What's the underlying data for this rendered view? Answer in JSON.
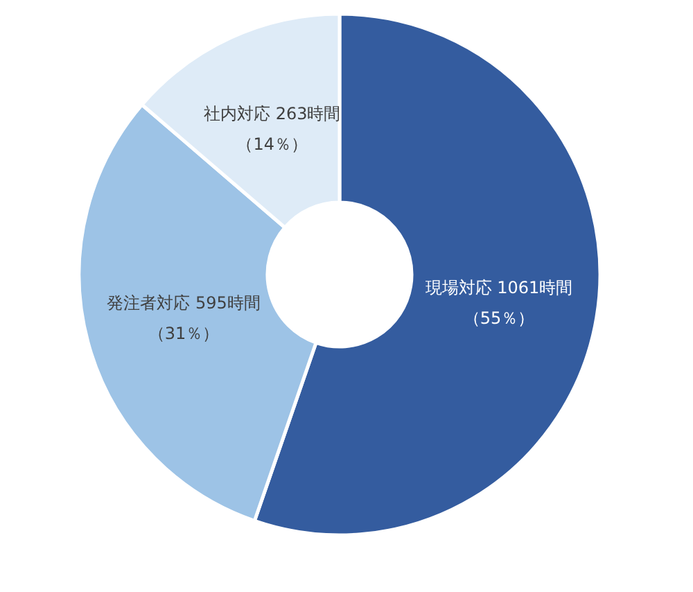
{
  "chart_data": {
    "type": "donut",
    "categories": [
      "現場対応",
      "発注者対応",
      "社内対応"
    ],
    "values": [
      1061,
      595,
      263
    ],
    "value_labels": [
      "1061時間（55％）",
      "595時間（31％）",
      "263時間（14％）"
    ],
    "colors": [
      "#345c9f",
      "#9dc3e6",
      "#deebf7"
    ]
  }
}
